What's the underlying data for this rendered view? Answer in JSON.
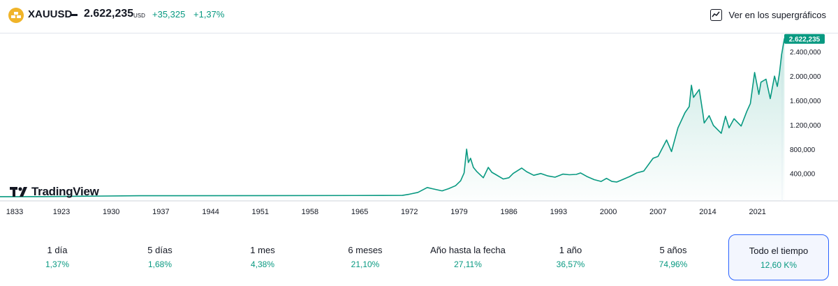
{
  "header": {
    "symbol": "XAUUSD",
    "price": "2.622,235",
    "currency": "USD",
    "change": "+35,325",
    "change_pct": "+1,37%",
    "supercharts_label": "Ver en los supergráficos",
    "icons": {
      "symbol": "gold-bars-icon",
      "supercharts": "chart-line-icon"
    }
  },
  "logo": {
    "text": "TradingView"
  },
  "colors": {
    "up": "#089981",
    "line": "#089981",
    "active_border": "#2962ff",
    "text": "#131722"
  },
  "chart_data": {
    "type": "area",
    "title": "",
    "xlabel": "",
    "ylabel": "",
    "x_ticks": [
      "1833",
      "1923",
      "1930",
      "1937",
      "1944",
      "1951",
      "1958",
      "1965",
      "1972",
      "1979",
      "1986",
      "1993",
      "2000",
      "2007",
      "2014",
      "2021"
    ],
    "y_ticks": [
      "400,000",
      "800,000",
      "1.200,000",
      "1.600,000",
      "2.000,000",
      "2.400,000"
    ],
    "y_tick_values": [
      400,
      800,
      1200,
      1600,
      2000,
      2400
    ],
    "ylim": [
      -50,
      2700
    ],
    "xlim": [
      1833,
      2025
    ],
    "last_value_label": "2.622,235",
    "last_value": 2622.235,
    "grid": false,
    "series": [
      {
        "values": [
          [
            1833,
            20
          ],
          [
            1890,
            21
          ],
          [
            1934,
            35
          ],
          [
            1968,
            39
          ],
          [
            1971,
            41
          ],
          [
            1972,
            60
          ],
          [
            1973.2,
            90
          ],
          [
            1974.5,
            170
          ],
          [
            1975.2,
            150
          ],
          [
            1976.6,
            115
          ],
          [
            1977.5,
            150
          ],
          [
            1978.5,
            200
          ],
          [
            1979.2,
            280
          ],
          [
            1979.7,
            410
          ],
          [
            1980.05,
            800
          ],
          [
            1980.3,
            580
          ],
          [
            1980.6,
            650
          ],
          [
            1981.0,
            500
          ],
          [
            1981.5,
            430
          ],
          [
            1982.4,
            330
          ],
          [
            1983.1,
            500
          ],
          [
            1983.6,
            420
          ],
          [
            1984.2,
            380
          ],
          [
            1985.2,
            310
          ],
          [
            1986.0,
            330
          ],
          [
            1986.6,
            400
          ],
          [
            1987.8,
            490
          ],
          [
            1988.5,
            430
          ],
          [
            1989.5,
            370
          ],
          [
            1990.5,
            400
          ],
          [
            1991.5,
            360
          ],
          [
            1992.5,
            340
          ],
          [
            1993.6,
            390
          ],
          [
            1994.5,
            380
          ],
          [
            1995.5,
            385
          ],
          [
            1996.1,
            410
          ],
          [
            1997.0,
            350
          ],
          [
            1998.0,
            300
          ],
          [
            1999.0,
            270
          ],
          [
            1999.75,
            320
          ],
          [
            2000.5,
            270
          ],
          [
            2001.2,
            260
          ],
          [
            2002.0,
            300
          ],
          [
            2003.0,
            350
          ],
          [
            2004.0,
            410
          ],
          [
            2005.0,
            440
          ],
          [
            2006.3,
            650
          ],
          [
            2007.0,
            680
          ],
          [
            2008.2,
            950
          ],
          [
            2008.9,
            760
          ],
          [
            2009.8,
            1150
          ],
          [
            2010.8,
            1400
          ],
          [
            2011.4,
            1500
          ],
          [
            2011.7,
            1850
          ],
          [
            2012.0,
            1650
          ],
          [
            2012.8,
            1780
          ],
          [
            2013.3,
            1400
          ],
          [
            2013.5,
            1230
          ],
          [
            2014.2,
            1350
          ],
          [
            2014.8,
            1190
          ],
          [
            2015.9,
            1060
          ],
          [
            2016.5,
            1340
          ],
          [
            2017.0,
            1150
          ],
          [
            2017.7,
            1300
          ],
          [
            2018.7,
            1180
          ],
          [
            2019.5,
            1420
          ],
          [
            2020.0,
            1550
          ],
          [
            2020.6,
            2060
          ],
          [
            2021.2,
            1700
          ],
          [
            2021.5,
            1900
          ],
          [
            2022.2,
            1950
          ],
          [
            2022.8,
            1630
          ],
          [
            2023.4,
            2000
          ],
          [
            2023.8,
            1830
          ],
          [
            2024.1,
            2050
          ],
          [
            2024.4,
            2350
          ],
          [
            2024.8,
            2622.235
          ]
        ]
      }
    ]
  },
  "periods": [
    {
      "label": "1 día",
      "value": "1,37%"
    },
    {
      "label": "5 días",
      "value": "1,68%"
    },
    {
      "label": "1 mes",
      "value": "4,38%"
    },
    {
      "label": "6 meses",
      "value": "21,10%"
    },
    {
      "label": "Año hasta la fecha",
      "value": "27,11%"
    },
    {
      "label": "1 año",
      "value": "36,57%"
    },
    {
      "label": "5 años",
      "value": "74,96%"
    },
    {
      "label": "Todo el tiempo",
      "value": "12,60 K%"
    }
  ],
  "active_period": 7
}
